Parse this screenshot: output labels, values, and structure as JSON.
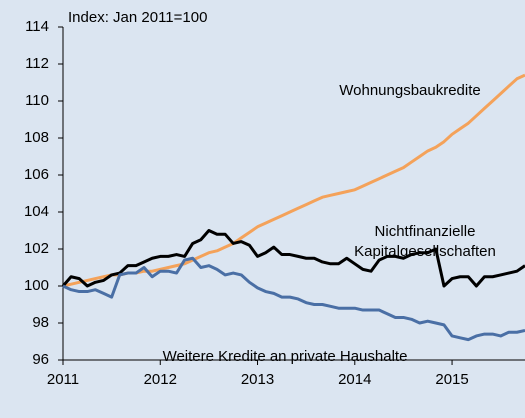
{
  "chart_data": {
    "type": "line",
    "annotation": "Index: Jan 2011=100",
    "x": [
      2011,
      2011.083,
      2011.167,
      2011.25,
      2011.333,
      2011.417,
      2011.5,
      2011.583,
      2011.667,
      2011.75,
      2011.833,
      2011.917,
      2012,
      2012.083,
      2012.167,
      2012.25,
      2012.333,
      2012.417,
      2012.5,
      2012.583,
      2012.667,
      2012.75,
      2012.833,
      2012.917,
      2013,
      2013.083,
      2013.167,
      2013.25,
      2013.333,
      2013.417,
      2013.5,
      2013.583,
      2013.667,
      2013.75,
      2013.833,
      2013.917,
      2014,
      2014.083,
      2014.167,
      2014.25,
      2014.333,
      2014.417,
      2014.5,
      2014.583,
      2014.667,
      2014.75,
      2014.833,
      2014.917,
      2015,
      2015.083,
      2015.167,
      2015.25,
      2015.333,
      2015.417,
      2015.5,
      2015.583,
      2015.667,
      2015.75
    ],
    "series": [
      {
        "name": "Wohnungsbaukredite",
        "color": "#f4a25a",
        "values": [
          100,
          100.1,
          100.2,
          100.3,
          100.4,
          100.5,
          100.6,
          100.6,
          100.7,
          100.7,
          100.8,
          100.8,
          100.9,
          101.0,
          101.1,
          101.2,
          101.4,
          101.6,
          101.8,
          101.9,
          102.1,
          102.3,
          102.6,
          102.9,
          103.2,
          103.4,
          103.6,
          103.8,
          104.0,
          104.2,
          104.4,
          104.6,
          104.8,
          104.9,
          105.0,
          105.1,
          105.2,
          105.4,
          105.6,
          105.8,
          106.0,
          106.2,
          106.4,
          106.7,
          107.0,
          107.3,
          107.5,
          107.8,
          108.2,
          108.5,
          108.8,
          109.2,
          109.6,
          110.0,
          110.4,
          110.8,
          111.2,
          111.4
        ]
      },
      {
        "name": "Nichtfinanzielle Kapitalgesellschaften",
        "color": "#000000",
        "values": [
          100,
          100.5,
          100.4,
          100.0,
          100.2,
          100.3,
          100.6,
          100.7,
          101.1,
          101.1,
          101.3,
          101.5,
          101.6,
          101.6,
          101.7,
          101.6,
          102.3,
          102.5,
          103.0,
          102.8,
          102.8,
          102.3,
          102.4,
          102.2,
          101.6,
          101.8,
          102.1,
          101.7,
          101.7,
          101.6,
          101.5,
          101.5,
          101.3,
          101.2,
          101.2,
          101.5,
          101.2,
          100.9,
          100.8,
          101.4,
          101.6,
          101.6,
          101.5,
          101.7,
          101.8,
          101.8,
          102.0,
          100.0,
          100.4,
          100.5,
          100.5,
          100.0,
          100.5,
          100.5,
          100.6,
          100.7,
          100.8,
          101.1
        ]
      },
      {
        "name": "Weitere Kredite an private Haushalte",
        "color": "#4a6fa5",
        "values": [
          100,
          99.8,
          99.7,
          99.7,
          99.8,
          99.6,
          99.4,
          100.6,
          100.7,
          100.7,
          101.0,
          100.5,
          100.8,
          100.8,
          100.7,
          101.4,
          101.5,
          101.0,
          101.1,
          100.9,
          100.6,
          100.7,
          100.6,
          100.2,
          99.9,
          99.7,
          99.6,
          99.4,
          99.4,
          99.3,
          99.1,
          99.0,
          99.0,
          98.9,
          98.8,
          98.8,
          98.8,
          98.7,
          98.7,
          98.7,
          98.5,
          98.3,
          98.3,
          98.2,
          98.0,
          98.1,
          98.0,
          97.9,
          97.3,
          97.2,
          97.1,
          97.3,
          97.4,
          97.4,
          97.3,
          97.5,
          97.5,
          97.6
        ]
      }
    ],
    "xlim": [
      2011,
      2015.75
    ],
    "xticks": [
      2011,
      2012,
      2013,
      2014,
      2015
    ],
    "ylim": [
      96,
      114
    ],
    "yticks": [
      96,
      98,
      100,
      102,
      104,
      106,
      108,
      110,
      112,
      114
    ],
    "grid": false
  }
}
